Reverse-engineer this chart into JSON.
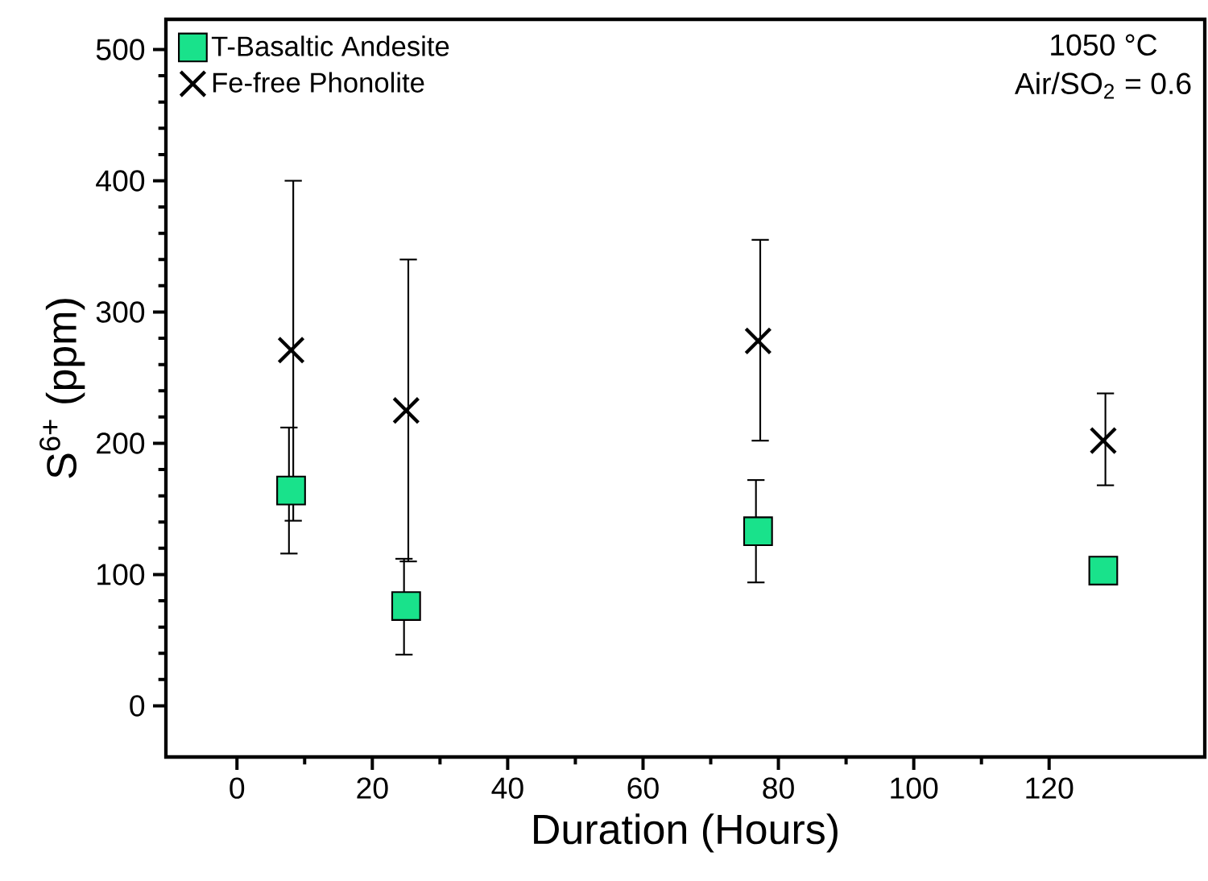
{
  "chart_data": {
    "type": "scatter",
    "xlabel": "Duration (Hours)",
    "ylabel": "S$^{6+}$ (ppm)",
    "annotations": [
      "1050 °C",
      "Air/SO$_{2}$ = 0.6"
    ],
    "x": [
      8,
      25,
      77,
      128
    ],
    "series": [
      {
        "name": "T-Basaltic Andesite",
        "color": "#19e28b",
        "marker": "square",
        "values": [
          164,
          76,
          133,
          103
        ],
        "errors": [
          [
            116,
            212
          ],
          [
            39,
            112
          ],
          [
            94,
            172
          ],
          null
        ]
      },
      {
        "name": "Fe-free Phonolite",
        "color": "#000000",
        "marker": "cross",
        "values": [
          271,
          225,
          278,
          202
        ],
        "errors": [
          [
            141,
            400
          ],
          [
            110,
            340
          ],
          [
            202,
            355
          ],
          [
            168,
            238
          ]
        ]
      }
    ],
    "xlim": [
      -10.5,
      143
    ],
    "ylim": [
      -39,
      523
    ],
    "xticks": [
      0,
      20,
      40,
      60,
      80,
      100,
      120
    ],
    "yticks": [
      0,
      100,
      200,
      300,
      400,
      500
    ],
    "grid": false,
    "legend": "top left"
  }
}
